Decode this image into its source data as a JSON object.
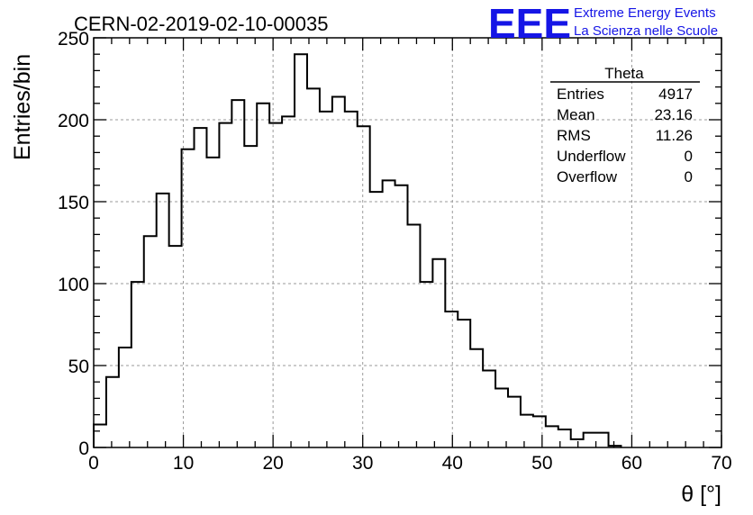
{
  "chart_data": {
    "type": "bar",
    "title": "CERN-02-2019-02-10-00035",
    "xlabel": "θ [°]",
    "ylabel": "Entries/bin",
    "xlim": [
      0,
      70
    ],
    "ylim": [
      0,
      250
    ],
    "xticks": [
      0,
      10,
      20,
      30,
      40,
      50,
      60,
      70
    ],
    "yticks": [
      0,
      50,
      100,
      150,
      200,
      250
    ],
    "grid": true,
    "bin_edges": [
      0,
      1.4,
      2.8,
      4.2,
      5.6,
      7,
      8.4,
      9.8,
      11.2,
      12.6,
      14,
      15.4,
      16.8,
      18.2,
      19.6,
      21,
      22.4,
      23.8,
      25.2,
      26.6,
      28,
      29.4,
      30.8,
      32.2,
      33.6,
      35,
      36.4,
      37.8,
      39.2,
      40.6,
      42,
      43.4,
      44.8,
      46.2,
      47.6,
      49,
      50.4,
      51.8,
      53.2,
      54.6,
      56,
      57.4,
      58.8
    ],
    "values": [
      14,
      43,
      61,
      101,
      129,
      155,
      123,
      182,
      195,
      177,
      198,
      212,
      184,
      210,
      198,
      202,
      240,
      219,
      205,
      214,
      205,
      196,
      156,
      163,
      160,
      136,
      101,
      115,
      83,
      78,
      60,
      47,
      36,
      31,
      20,
      19,
      13,
      11,
      5,
      9,
      9,
      1
    ]
  },
  "stats_box": {
    "name": "Theta",
    "rows": [
      {
        "label": "Entries",
        "value": "4917"
      },
      {
        "label": "Mean",
        "value": "23.16"
      },
      {
        "label": "RMS",
        "value": "11.26"
      },
      {
        "label": "Underflow",
        "value": "0"
      },
      {
        "label": "Overflow",
        "value": "0"
      }
    ]
  },
  "logo": {
    "mark": "EEE",
    "line1": "Extreme Energy Events",
    "line2": "La Scienza nelle Scuole",
    "color": "#1515e6"
  },
  "colors": {
    "histogram": "#000000",
    "grid": "#9a9a9a",
    "frame": "#000000"
  }
}
